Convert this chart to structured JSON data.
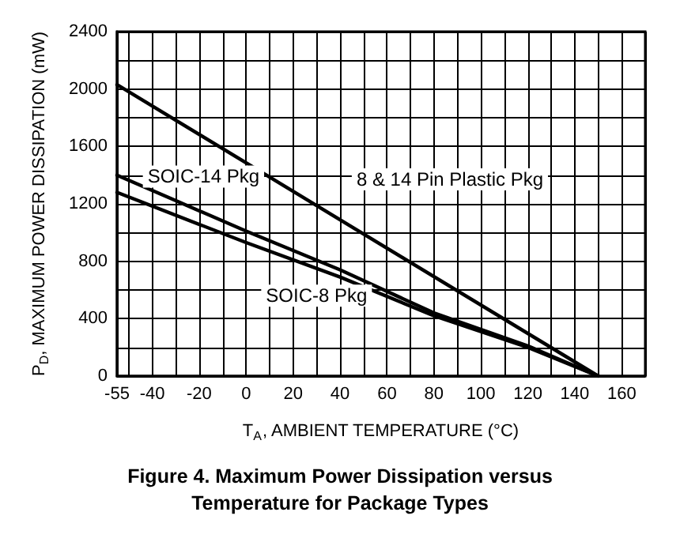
{
  "chart_data": {
    "type": "line",
    "title": "Figure 4. Maximum Power Dissipation versus\nTemperature for Package Types",
    "xlabel": "T$_{A}$, AMBIENT TEMPERATURE (°C)",
    "ylabel": "P$_{D}$, MAXIMUM POWER DISSIPATION (mW)",
    "series": [
      {
        "name": "8 & 14 Pin Plastic Pkg",
        "color": "#000000",
        "x": [
          -55,
          150
        ],
        "values": [
          2030,
          0
        ]
      },
      {
        "name": "SOIC-14 Pkg",
        "color": "#000000",
        "x": [
          -55,
          0,
          40,
          80,
          120,
          150
        ],
        "values": [
          1400,
          1010,
          740,
          440,
          210,
          0
        ]
      },
      {
        "name": "SOIC-8 Pkg",
        "color": "#000000",
        "x": [
          -55,
          0,
          40,
          80,
          120,
          150
        ],
        "values": [
          1280,
          930,
          690,
          420,
          200,
          0
        ]
      }
    ],
    "xlim": [
      -55,
      170
    ],
    "xticks": [
      -55,
      {
        "value": -50,
        "label": null
      },
      -40,
      {
        "value": -30,
        "label": null
      },
      -20,
      {
        "value": -10,
        "label": null
      },
      0,
      {
        "value": 10,
        "label": null
      },
      20,
      {
        "value": 30,
        "label": null
      },
      40,
      {
        "value": 50,
        "label": null
      },
      60,
      {
        "value": 70,
        "label": null
      },
      80,
      {
        "value": 90,
        "label": null
      },
      100,
      {
        "value": 110,
        "label": null
      },
      120,
      {
        "value": 130,
        "label": null
      },
      140,
      {
        "value": 150,
        "label": null
      },
      160,
      {
        "value": 170,
        "label": null
      }
    ],
    "ylim": [
      0,
      2400
    ],
    "yticks": [
      0,
      {
        "value": 200,
        "label": null
      },
      400,
      {
        "value": 600,
        "label": null
      },
      800,
      {
        "value": 1000,
        "label": null
      },
      1200,
      {
        "value": 1400,
        "label": null
      },
      1600,
      {
        "value": 1800,
        "label": null
      },
      2000,
      {
        "value": 2200,
        "label": null
      },
      2400
    ],
    "grid": true,
    "legend": false,
    "marker": "none",
    "line_style": "solid"
  }
}
